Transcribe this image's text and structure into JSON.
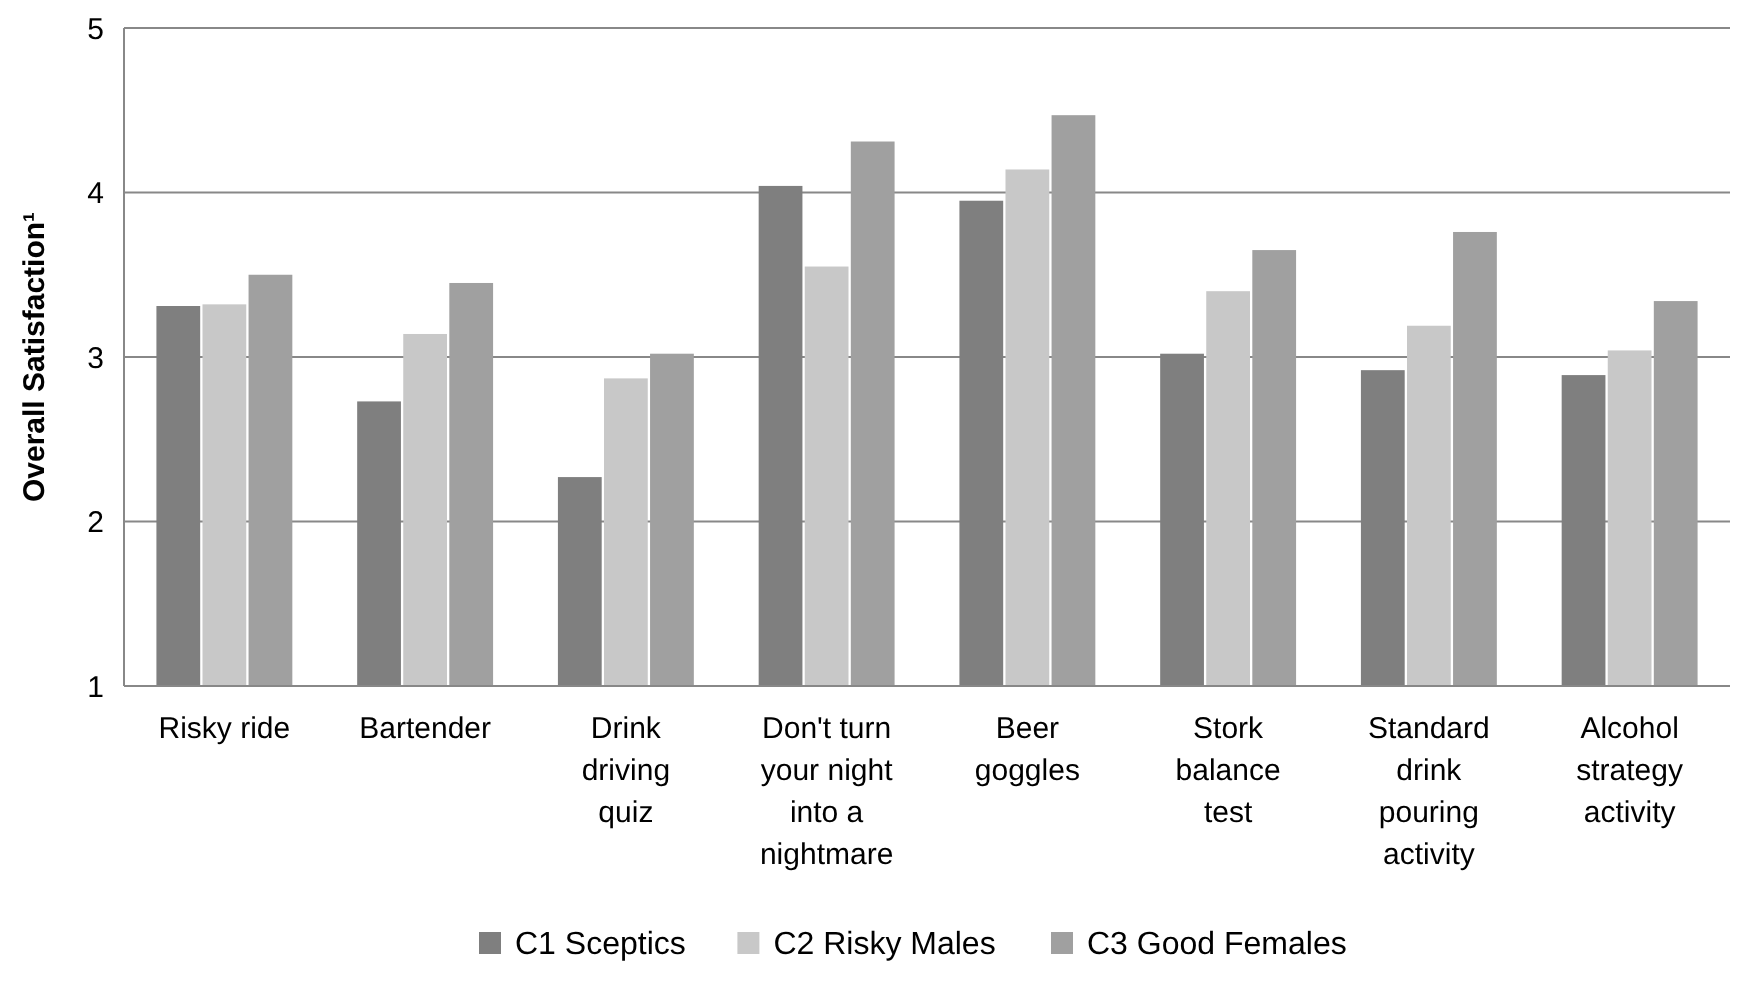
{
  "chart_data": {
    "type": "bar",
    "ylabel": "Overall Satisfaction¹",
    "categories": [
      "Risky ride",
      "Bartender",
      "Drink driving quiz",
      "Don't turn your night into a nightmare",
      "Beer goggles",
      "Stork balance test",
      "Standard drink pouring activity",
      "Alcohol strategy activity"
    ],
    "series": [
      {
        "name": "C1 Sceptics",
        "color": "#7f7f7f",
        "values": [
          3.31,
          2.73,
          2.27,
          4.04,
          3.95,
          3.02,
          2.92,
          2.89
        ]
      },
      {
        "name": "C2 Risky Males",
        "color": "#c8c8c8",
        "values": [
          3.32,
          3.14,
          2.87,
          3.55,
          4.14,
          3.4,
          3.19,
          3.04
        ]
      },
      {
        "name": "C3 Good Females",
        "color": "#a0a0a0",
        "values": [
          3.5,
          3.45,
          3.02,
          4.31,
          4.47,
          3.65,
          3.76,
          3.34
        ]
      }
    ],
    "ylim": [
      1,
      5
    ],
    "yticks": [
      1,
      2,
      3,
      4,
      5
    ],
    "grid": "y",
    "legend": "bottom"
  }
}
